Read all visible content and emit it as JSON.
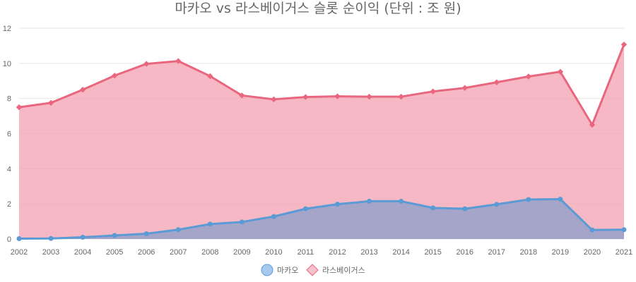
{
  "chart_data": {
    "type": "area",
    "title": "마카오 vs 라스베이거스 슬롯 순이익 (단위 : 조 원)",
    "x": [
      "2002",
      "2003",
      "2004",
      "2005",
      "2006",
      "2007",
      "2008",
      "2009",
      "2010",
      "2011",
      "2012",
      "2013",
      "2014",
      "2015",
      "2016",
      "2017",
      "2018",
      "2019",
      "2020",
      "2021"
    ],
    "ylim": [
      0,
      12
    ],
    "yticks": [
      0,
      2,
      4,
      6,
      8,
      10,
      12
    ],
    "grid": true,
    "legend_position": "bottom",
    "series": [
      {
        "name": "마카오",
        "color": "#5b9bd5",
        "fill": "rgba(112, 150, 205, 0.6)",
        "marker": "circle",
        "values": [
          0.02,
          0.03,
          0.1,
          0.2,
          0.3,
          0.53,
          0.85,
          0.97,
          1.28,
          1.72,
          1.98,
          2.15,
          2.15,
          1.77,
          1.72,
          1.97,
          2.25,
          2.27,
          0.51,
          0.53
        ]
      },
      {
        "name": "라스베이거스",
        "color": "#e9677e",
        "fill": "rgba(243, 160, 176, 0.75)",
        "marker": "diamond",
        "values": [
          7.5,
          7.75,
          8.5,
          9.3,
          9.97,
          10.13,
          9.27,
          8.17,
          7.95,
          8.08,
          8.12,
          8.1,
          8.1,
          8.4,
          8.6,
          8.92,
          9.25,
          9.52,
          6.5,
          11.07
        ]
      }
    ]
  }
}
